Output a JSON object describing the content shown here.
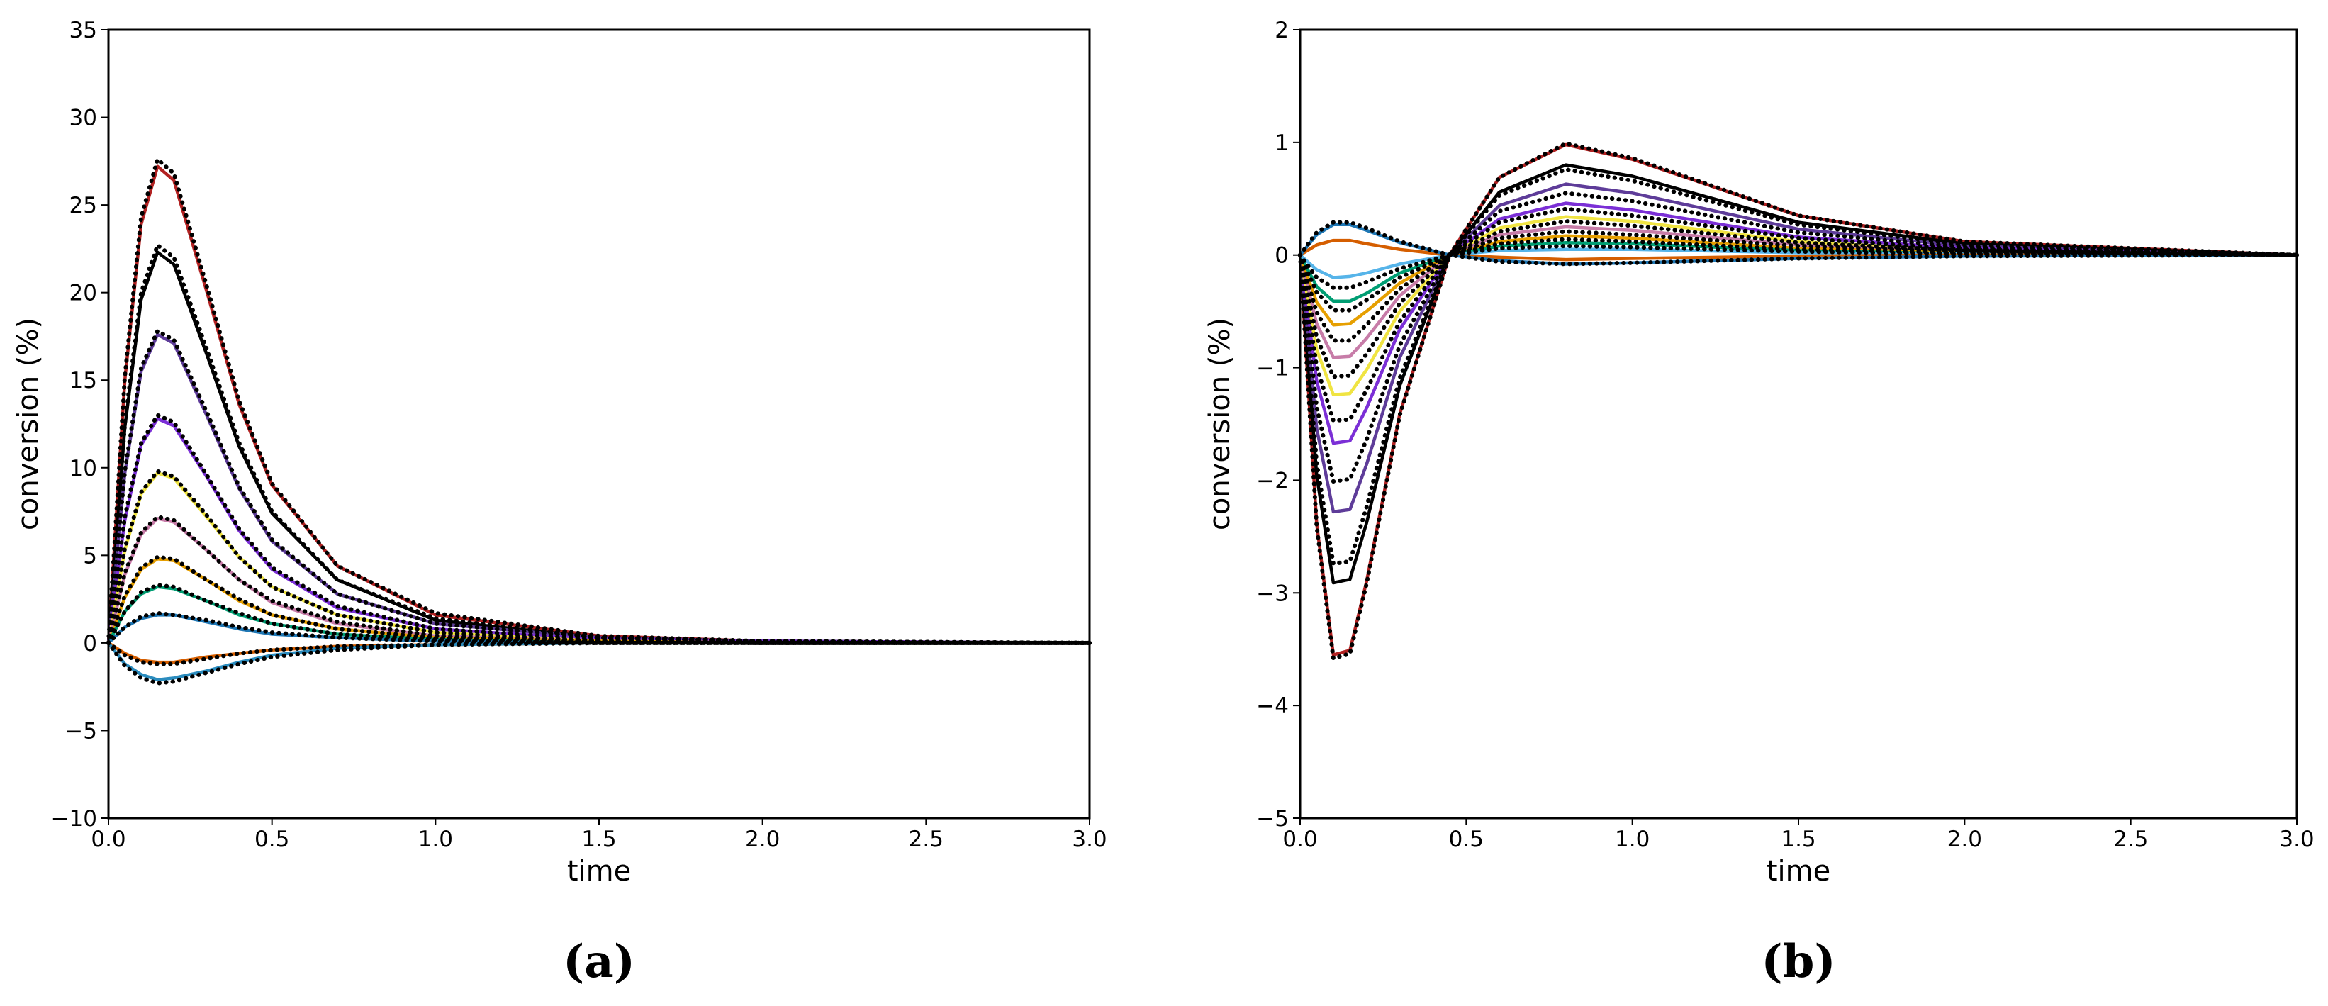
{
  "chart_data": [
    {
      "type": "line",
      "caption": "(a)",
      "xlabel": "time",
      "ylabel": "conversion (%)",
      "xlim": [
        0,
        3
      ],
      "ylim": [
        -10,
        35
      ],
      "xticks": [
        {
          "value": 0,
          "label": "0.0"
        },
        0.5,
        {
          "value": 1,
          "label": "1.0"
        },
        1.5,
        {
          "value": 2,
          "label": "2.0"
        },
        2.5,
        {
          "value": 3,
          "label": "3.0"
        }
      ],
      "yticks": [
        {
          "value": -10,
          "label": "−10"
        },
        {
          "value": -5,
          "label": "−5"
        },
        0,
        5,
        10,
        15,
        20,
        25,
        30,
        35
      ],
      "x": [
        0,
        0.05,
        0.1,
        0.15,
        0.2,
        0.3,
        0.4,
        0.5,
        0.7,
        1.0,
        1.5,
        2.0,
        3.0
      ],
      "series": [
        {
          "color": "#b22222",
          "values": [
            0,
            15.0,
            23.9,
            27.2,
            26.4,
            20.1,
            13.6,
            9.0,
            4.4,
            1.6,
            0.4,
            0.1,
            0
          ]
        },
        {
          "color": "#000000",
          "values": [
            0,
            12.3,
            19.6,
            22.3,
            21.6,
            16.5,
            11.2,
            7.4,
            3.6,
            1.3,
            0.3,
            0.1,
            0
          ]
        },
        {
          "color": "#5e3c99",
          "values": [
            0,
            9.7,
            15.5,
            17.6,
            17.1,
            13.0,
            8.8,
            5.8,
            2.8,
            1.1,
            0.3,
            0.1,
            0
          ]
        },
        {
          "color": "#7b2fd6",
          "values": [
            0,
            7.0,
            11.3,
            12.8,
            12.4,
            9.5,
            6.4,
            4.2,
            2.0,
            0.8,
            0.2,
            0.1,
            0
          ]
        },
        {
          "color": "#f0e442",
          "values": [
            0,
            5.3,
            8.5,
            9.7,
            9.4,
            7.2,
            4.9,
            3.2,
            1.6,
            0.6,
            0.1,
            0,
            0
          ]
        },
        {
          "color": "#c77ca8",
          "values": [
            0,
            3.9,
            6.2,
            7.1,
            6.9,
            5.3,
            3.6,
            2.3,
            1.1,
            0.4,
            0.1,
            0,
            0
          ]
        },
        {
          "color": "#e69f00",
          "values": [
            0,
            2.6,
            4.2,
            4.8,
            4.7,
            3.6,
            2.4,
            1.6,
            0.8,
            0.3,
            0.1,
            0,
            0
          ]
        },
        {
          "color": "#009e73",
          "values": [
            0,
            1.8,
            2.8,
            3.2,
            3.1,
            2.4,
            1.6,
            1.1,
            0.5,
            0.2,
            0,
            0,
            0
          ]
        },
        {
          "color": "#1f77b4",
          "values": [
            0,
            0.9,
            1.4,
            1.6,
            1.6,
            1.2,
            0.8,
            0.5,
            0.3,
            0.1,
            0,
            0,
            0
          ]
        },
        {
          "color": "#d55e00",
          "values": [
            0,
            -0.6,
            -1.0,
            -1.1,
            -1.1,
            -0.8,
            -0.6,
            -0.4,
            -0.2,
            -0.1,
            0,
            0,
            0
          ]
        },
        {
          "color": "#2b8cbe",
          "values": [
            0,
            -1.2,
            -1.8,
            -2.1,
            -2.0,
            -1.6,
            -1.1,
            -0.7,
            -0.3,
            -0.1,
            0,
            0,
            0
          ]
        },
        {
          "color": "#000000",
          "dash": "dotted",
          "values": [
            0,
            15.2,
            24.3,
            27.6,
            26.8,
            20.4,
            13.8,
            9.1,
            4.4,
            1.7,
            0.4,
            0.1,
            0
          ]
        },
        {
          "color": "#000000",
          "dash": "dotted",
          "values": [
            0,
            12.5,
            20.0,
            22.7,
            22.0,
            16.8,
            11.4,
            7.5,
            3.6,
            1.4,
            0.3,
            0.1,
            0
          ]
        },
        {
          "color": "#000000",
          "dash": "dotted",
          "values": [
            0,
            9.8,
            15.7,
            17.8,
            17.3,
            13.2,
            8.9,
            5.9,
            2.8,
            1.1,
            0.3,
            0.1,
            0
          ]
        },
        {
          "color": "#000000",
          "dash": "dotted",
          "values": [
            0,
            7.2,
            11.4,
            13.0,
            12.6,
            9.6,
            6.5,
            4.3,
            2.1,
            0.8,
            0.2,
            0.1,
            0
          ]
        },
        {
          "color": "#000000",
          "dash": "dotted",
          "values": [
            0,
            5.4,
            8.6,
            9.8,
            9.5,
            7.3,
            4.9,
            3.2,
            1.6,
            0.6,
            0.1,
            0,
            0
          ]
        },
        {
          "color": "#000000",
          "dash": "dotted",
          "values": [
            0,
            4.0,
            6.3,
            7.2,
            7.0,
            5.3,
            3.6,
            2.4,
            1.2,
            0.4,
            0.1,
            0,
            0
          ]
        },
        {
          "color": "#000000",
          "dash": "dotted",
          "values": [
            0,
            2.7,
            4.3,
            4.9,
            4.8,
            3.6,
            2.5,
            1.6,
            0.8,
            0.3,
            0.1,
            0,
            0
          ]
        },
        {
          "color": "#000000",
          "dash": "dotted",
          "values": [
            0,
            1.8,
            2.9,
            3.3,
            3.2,
            2.4,
            1.7,
            1.1,
            0.5,
            0.2,
            0,
            0,
            0
          ]
        },
        {
          "color": "#000000",
          "dash": "dotted",
          "values": [
            0,
            0.9,
            1.5,
            1.7,
            1.6,
            1.3,
            0.9,
            0.6,
            0.3,
            0.1,
            0,
            0,
            0
          ]
        },
        {
          "color": "#000000",
          "dash": "dotted",
          "values": [
            0,
            -0.7,
            -1.1,
            -1.2,
            -1.2,
            -0.9,
            -0.6,
            -0.4,
            -0.2,
            -0.1,
            0,
            0,
            0
          ]
        },
        {
          "color": "#000000",
          "dash": "dotted",
          "values": [
            0,
            -1.3,
            -2.0,
            -2.3,
            -2.2,
            -1.7,
            -1.2,
            -0.8,
            -0.4,
            -0.1,
            0,
            0,
            0
          ]
        }
      ]
    },
    {
      "type": "line",
      "caption": "(b)",
      "xlabel": "time",
      "ylabel": "conversion (%)",
      "xlim": [
        0,
        3
      ],
      "ylim": [
        -5,
        2
      ],
      "xticks": [
        {
          "value": 0,
          "label": "0.0"
        },
        0.5,
        {
          "value": 1,
          "label": "1.0"
        },
        1.5,
        {
          "value": 2,
          "label": "2.0"
        },
        2.5,
        {
          "value": 3,
          "label": "3.0"
        }
      ],
      "yticks": [
        {
          "value": -5,
          "label": "−5"
        },
        {
          "value": -4,
          "label": "−4"
        },
        {
          "value": -3,
          "label": "−3"
        },
        {
          "value": -2,
          "label": "−2"
        },
        {
          "value": -1,
          "label": "−1"
        },
        0,
        1,
        2
      ],
      "x": [
        0,
        0.05,
        0.1,
        0.15,
        0.2,
        0.3,
        0.45,
        0.6,
        0.8,
        1.0,
        1.5,
        2.0,
        3.0
      ],
      "series": [
        {
          "color": "#b22222",
          "values": [
            0,
            -2.39,
            -3.55,
            -3.51,
            -2.9,
            -1.41,
            0,
            0.69,
            0.98,
            0.85,
            0.35,
            0.12,
            0
          ]
        },
        {
          "color": "#000000",
          "values": [
            0,
            -1.96,
            -2.91,
            -2.88,
            -2.38,
            -1.16,
            0,
            0.56,
            0.8,
            0.7,
            0.29,
            0.1,
            0
          ]
        },
        {
          "color": "#5e3c99",
          "values": [
            0,
            -1.54,
            -2.28,
            -2.26,
            -1.86,
            -0.91,
            0,
            0.44,
            0.63,
            0.55,
            0.23,
            0.08,
            0
          ]
        },
        {
          "color": "#7b2fd6",
          "values": [
            0,
            -1.12,
            -1.67,
            -1.65,
            -1.36,
            -0.66,
            0,
            0.32,
            0.46,
            0.4,
            0.16,
            0.06,
            0
          ]
        },
        {
          "color": "#f0e442",
          "values": [
            0,
            -0.84,
            -1.24,
            -1.23,
            -1.02,
            -0.5,
            0,
            0.24,
            0.34,
            0.3,
            0.12,
            0.04,
            0
          ]
        },
        {
          "color": "#c77ca8",
          "values": [
            0,
            -0.61,
            -0.91,
            -0.9,
            -0.74,
            -0.36,
            0,
            0.18,
            0.25,
            0.22,
            0.09,
            0.03,
            0
          ]
        },
        {
          "color": "#e69f00",
          "values": [
            0,
            -0.42,
            -0.62,
            -0.61,
            -0.5,
            -0.25,
            0,
            0.12,
            0.17,
            0.15,
            0.06,
            0.02,
            0
          ]
        },
        {
          "color": "#009e73",
          "values": [
            0,
            -0.28,
            -0.41,
            -0.41,
            -0.34,
            -0.16,
            0,
            0.08,
            0.11,
            0.1,
            0.04,
            0.01,
            0
          ]
        },
        {
          "color": "#56b4e9",
          "values": [
            0,
            -0.13,
            -0.2,
            -0.19,
            -0.16,
            -0.08,
            0,
            0.04,
            0.05,
            0.05,
            0.02,
            0.01,
            0
          ]
        },
        {
          "color": "#d55e00",
          "values": [
            0,
            0.09,
            0.13,
            0.13,
            0.1,
            0.05,
            0,
            -0.02,
            -0.04,
            -0.03,
            -0.01,
            0,
            0
          ]
        },
        {
          "color": "#1f77b4",
          "values": [
            0,
            0.18,
            0.27,
            0.27,
            0.22,
            0.11,
            0,
            -0.05,
            -0.08,
            -0.07,
            -0.03,
            -0.01,
            0
          ]
        },
        {
          "color": "#000000",
          "dash": "dotted",
          "values": [
            0,
            -2.41,
            -3.58,
            -3.54,
            -2.92,
            -1.42,
            0,
            0.69,
            0.99,
            0.86,
            0.35,
            0.12,
            0
          ]
        },
        {
          "color": "#000000",
          "dash": "dotted",
          "values": [
            0,
            -1.85,
            -2.74,
            -2.72,
            -2.24,
            -1.09,
            0,
            0.53,
            0.76,
            0.66,
            0.27,
            0.09,
            0
          ]
        },
        {
          "color": "#000000",
          "dash": "dotted",
          "values": [
            0,
            -1.35,
            -2.01,
            -1.99,
            -1.64,
            -0.8,
            0,
            0.39,
            0.55,
            0.48,
            0.2,
            0.07,
            0
          ]
        },
        {
          "color": "#000000",
          "dash": "dotted",
          "values": [
            0,
            -0.99,
            -1.47,
            -1.46,
            -1.2,
            -0.59,
            0,
            0.29,
            0.41,
            0.35,
            0.15,
            0.05,
            0
          ]
        },
        {
          "color": "#000000",
          "dash": "dotted",
          "values": [
            0,
            -0.73,
            -1.08,
            -1.07,
            -0.88,
            -0.43,
            0,
            0.21,
            0.3,
            0.26,
            0.11,
            0.04,
            0
          ]
        },
        {
          "color": "#000000",
          "dash": "dotted",
          "values": [
            0,
            -0.51,
            -0.76,
            -0.76,
            -0.62,
            -0.3,
            0,
            0.15,
            0.21,
            0.18,
            0.08,
            0.03,
            0
          ]
        },
        {
          "color": "#000000",
          "dash": "dotted",
          "values": [
            0,
            -0.33,
            -0.49,
            -0.49,
            -0.4,
            -0.2,
            0,
            0.1,
            0.14,
            0.12,
            0.05,
            0.02,
            0
          ]
        },
        {
          "color": "#000000",
          "dash": "dotted",
          "values": [
            0,
            -0.2,
            -0.29,
            -0.29,
            -0.24,
            -0.12,
            0,
            0.06,
            0.08,
            0.07,
            0.03,
            0.01,
            0
          ]
        },
        {
          "color": "#000000",
          "dash": "dotted",
          "values": [
            0,
            0.2,
            0.29,
            0.29,
            0.24,
            0.12,
            0,
            -0.06,
            -0.08,
            -0.07,
            -0.03,
            -0.01,
            0
          ]
        }
      ]
    }
  ]
}
